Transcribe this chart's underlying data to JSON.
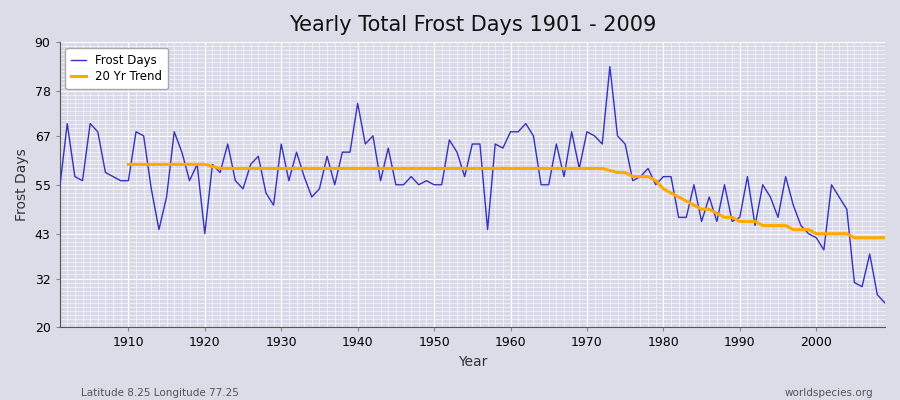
{
  "title": "Yearly Total Frost Days 1901 - 2009",
  "xlabel": "Year",
  "ylabel": "Frost Days",
  "lat_lon_label": "Latitude 8.25 Longitude 77.25",
  "source_label": "worldspecies.org",
  "years": [
    1901,
    1902,
    1903,
    1904,
    1905,
    1906,
    1907,
    1908,
    1909,
    1910,
    1911,
    1912,
    1913,
    1914,
    1915,
    1916,
    1917,
    1918,
    1919,
    1920,
    1921,
    1922,
    1923,
    1924,
    1925,
    1926,
    1927,
    1928,
    1929,
    1930,
    1931,
    1932,
    1933,
    1934,
    1935,
    1936,
    1937,
    1938,
    1939,
    1940,
    1941,
    1942,
    1943,
    1944,
    1945,
    1946,
    1947,
    1948,
    1949,
    1950,
    1951,
    1952,
    1953,
    1954,
    1955,
    1956,
    1957,
    1958,
    1959,
    1960,
    1961,
    1962,
    1963,
    1964,
    1965,
    1966,
    1967,
    1968,
    1969,
    1970,
    1971,
    1972,
    1973,
    1974,
    1975,
    1976,
    1977,
    1978,
    1979,
    1980,
    1981,
    1982,
    1983,
    1984,
    1985,
    1986,
    1987,
    1988,
    1989,
    1990,
    1991,
    1992,
    1993,
    1994,
    1995,
    1996,
    1997,
    1998,
    1999,
    2000,
    2001,
    2002,
    2003,
    2004,
    2005,
    2006,
    2007,
    2008,
    2009
  ],
  "frost_days": [
    54,
    70,
    57,
    56,
    70,
    68,
    58,
    57,
    56,
    56,
    68,
    67,
    54,
    44,
    52,
    68,
    63,
    56,
    60,
    43,
    60,
    58,
    65,
    56,
    54,
    60,
    62,
    53,
    50,
    65,
    56,
    63,
    57,
    52,
    54,
    62,
    55,
    63,
    63,
    75,
    65,
    67,
    56,
    64,
    55,
    55,
    57,
    55,
    56,
    55,
    55,
    66,
    63,
    57,
    65,
    65,
    44,
    65,
    64,
    68,
    68,
    70,
    67,
    55,
    55,
    65,
    57,
    68,
    59,
    68,
    67,
    65,
    84,
    67,
    65,
    56,
    57,
    59,
    55,
    57,
    57,
    47,
    47,
    55,
    46,
    52,
    46,
    55,
    46,
    47,
    57,
    45,
    55,
    52,
    47,
    57,
    50,
    45,
    43,
    42,
    39,
    55,
    52,
    49,
    31,
    30,
    38,
    28,
    26
  ],
  "trend_years": [
    1910,
    1912,
    1915,
    1918,
    1920,
    1922,
    1925,
    1928,
    1930,
    1932,
    1935,
    1938,
    1940,
    1942,
    1945,
    1948,
    1950,
    1952,
    1955,
    1958,
    1960,
    1962,
    1965,
    1968,
    1970,
    1972,
    1974,
    1975,
    1976,
    1977,
    1978,
    1979,
    1980,
    1981,
    1982,
    1983,
    1984,
    1985,
    1986,
    1987,
    1988,
    1989,
    1990,
    1991,
    1992,
    1993,
    1994,
    1995,
    1996,
    1997,
    1998,
    1999,
    2000,
    2001,
    2002,
    2003,
    2004,
    2005,
    2006,
    2007,
    2008,
    2009
  ],
  "trend_values": [
    60,
    60,
    60,
    60,
    60,
    59,
    59,
    59,
    59,
    59,
    59,
    59,
    59,
    59,
    59,
    59,
    59,
    59,
    59,
    59,
    59,
    59,
    59,
    59,
    59,
    59,
    58,
    58,
    57,
    57,
    57,
    56,
    54,
    53,
    52,
    51,
    50,
    49,
    49,
    48,
    47,
    47,
    46,
    46,
    46,
    45,
    45,
    45,
    45,
    44,
    44,
    44,
    43,
    43,
    43,
    43,
    43,
    42,
    42,
    42,
    42,
    42
  ],
  "line_color": "#3333bb",
  "trend_color": "#ffaa00",
  "bg_color": "#dcdce8",
  "plot_bg_color": "#d8d8e8",
  "grid_color": "#ffffff",
  "ylim": [
    20,
    90
  ],
  "yticks": [
    20,
    32,
    43,
    55,
    67,
    78,
    90
  ],
  "xlim": [
    1901,
    2009
  ],
  "xticks": [
    1910,
    1920,
    1930,
    1940,
    1950,
    1960,
    1970,
    1980,
    1990,
    2000
  ],
  "title_fontsize": 15,
  "axis_label_fontsize": 10,
  "tick_fontsize": 9,
  "legend_fontsize": 8.5
}
